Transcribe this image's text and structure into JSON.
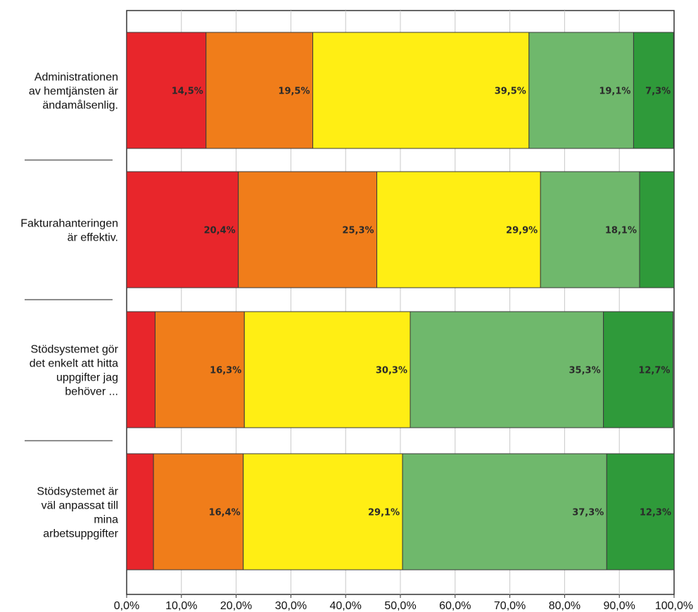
{
  "chart_data": {
    "type": "bar",
    "orientation": "horizontal",
    "stacked": true,
    "title": "",
    "xlabel": "",
    "ylabel": "",
    "xlim": [
      0,
      100
    ],
    "grid": true,
    "legend": "none",
    "x_tick_labels": [
      "0,0%",
      "10,0%",
      "20,0%",
      "30,0%",
      "40,0%",
      "50,0%",
      "60,0%",
      "70,0%",
      "80,0%",
      "90,0%",
      "100,0%"
    ],
    "categories": [
      "Administrationen av hemtjänsten är ändamålsenlig.",
      "Fakturahanteringen är effektiv.",
      "Stödsystemet gör det enkelt att hitta uppgifter jag behöver ...",
      "Stödsystemet är väl anpassat till mina arbetsuppgifter"
    ],
    "category_lines": [
      [
        "Administrationen",
        "av hemtjänsten är",
        "ändamålsenlig."
      ],
      [
        "Fakturahanteringen",
        "är effektiv."
      ],
      [
        "Stödsystemet gör",
        "det enkelt att hitta",
        "uppgifter jag",
        "behöver ..."
      ],
      [
        "Stödsystemet är",
        "väl anpassat till",
        "mina",
        "arbetsuppgifter"
      ]
    ],
    "series": [
      {
        "color": "#e8262b",
        "values": [
          14.5,
          20.4,
          5.2,
          4.9
        ],
        "labels": [
          "14,5%",
          "20,4%",
          "",
          ""
        ]
      },
      {
        "color": "#f07d1a",
        "values": [
          19.5,
          25.3,
          16.3,
          16.4
        ],
        "labels": [
          "19,5%",
          "25,3%",
          "16,3%",
          "16,4%"
        ]
      },
      {
        "color": "#ffee14",
        "values": [
          39.5,
          29.9,
          30.3,
          29.1
        ],
        "labels": [
          "39,5%",
          "29,9%",
          "30,3%",
          "29,1%"
        ]
      },
      {
        "color": "#6fb86c",
        "values": [
          19.1,
          18.1,
          35.3,
          37.3
        ],
        "labels": [
          "19,1%",
          "18,1%",
          "35,3%",
          "37,3%"
        ]
      },
      {
        "color": "#2f9a3a",
        "values": [
          7.3,
          6.3,
          12.7,
          12.3
        ],
        "labels": [
          "7,3%",
          "",
          "12,7%",
          "12,3%"
        ]
      }
    ]
  }
}
